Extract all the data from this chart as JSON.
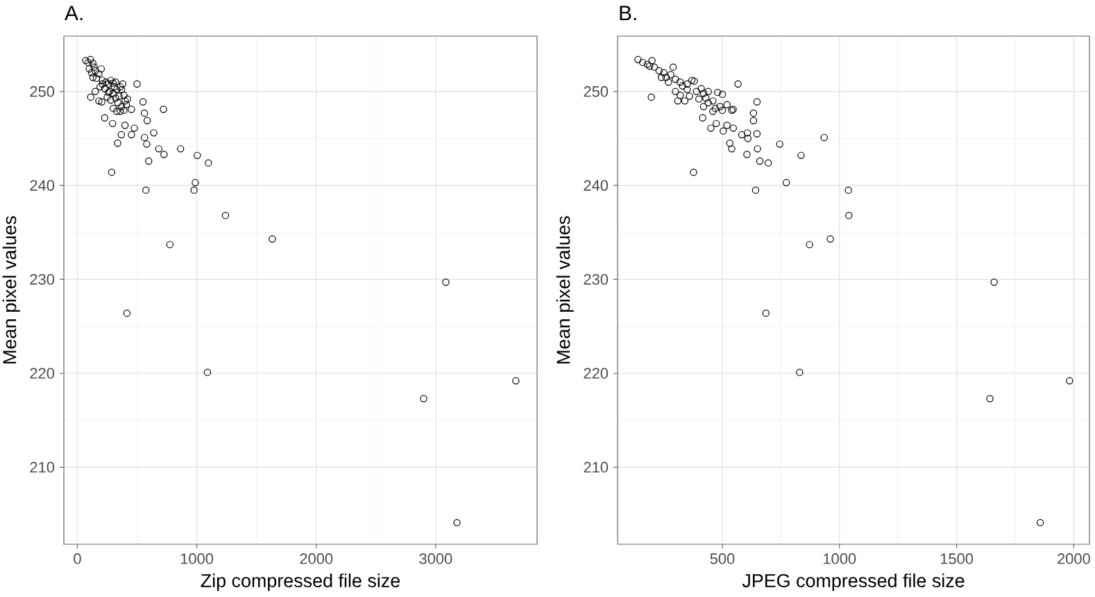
{
  "chart_data": [
    {
      "type": "scatter",
      "title": "A.",
      "xlabel": "Zip compressed file size",
      "ylabel": "Mean pixel values",
      "marker": "circle",
      "color": "#000000",
      "grid": true,
      "xlim": [
        -113,
        3849
      ],
      "ylim": [
        201.8,
        255.9
      ],
      "xticks": [
        0,
        1000,
        2000,
        3000
      ],
      "yticks": [
        210,
        220,
        230,
        240,
        250
      ],
      "x": [
        500,
        550,
        562,
        585,
        721,
        640,
        562,
        581,
        682,
        725,
        864,
        1004,
        1097,
        597,
        574,
        988,
        977,
        1240,
        775,
        1632,
        287,
        415,
        1089,
        3085,
        2899,
        3671,
        3178,
        337,
        368,
        453,
        477,
        399,
        295,
        229,
        112,
        205,
        453,
        70,
        90,
        110,
        130,
        140,
        100,
        150,
        120,
        180,
        200,
        160,
        210,
        240,
        260,
        280,
        300,
        320,
        190,
        230,
        270,
        300,
        330,
        360,
        380,
        350,
        320,
        280,
        390,
        400,
        340,
        370,
        410,
        300,
        330,
        360,
        390,
        250,
        180,
        150,
        210,
        130,
        420,
        370,
        310,
        260
      ],
      "values": [
        250.8,
        248.9,
        247.7,
        246.9,
        248.1,
        245.6,
        245.1,
        244.4,
        243.9,
        243.3,
        243.9,
        243.2,
        242.4,
        242.6,
        239.5,
        240.3,
        239.5,
        236.8,
        233.7,
        234.3,
        241.4,
        226.4,
        220.1,
        229.7,
        217.3,
        219.2,
        204.1,
        244.5,
        245.4,
        245.4,
        246.1,
        246.4,
        246.6,
        247.2,
        249.4,
        248.9,
        248.1,
        253.3,
        253.1,
        253.4,
        253.0,
        252.6,
        252.4,
        252.2,
        252.0,
        251.9,
        252.4,
        251.4,
        251.2,
        251.0,
        250.8,
        251.2,
        250.9,
        251.0,
        250.5,
        250.3,
        250.0,
        249.8,
        250.2,
        250.5,
        250.8,
        249.5,
        249.3,
        249.1,
        249.6,
        249.0,
        248.8,
        248.4,
        248.6,
        248.2,
        247.9,
        247.9,
        248.0,
        249.4,
        249.0,
        250.0,
        250.8,
        251.5,
        249.2,
        250.2,
        250.5,
        249.9
      ]
    },
    {
      "type": "scatter",
      "title": "B.",
      "xlabel": "JPEG compressed file size",
      "ylabel": "Mean pixel values",
      "marker": "circle",
      "color": "#000000",
      "grid": true,
      "xlim": [
        53,
        2067
      ],
      "ylim": [
        201.8,
        255.9
      ],
      "xticks": [
        500,
        1000,
        1500,
        2000
      ],
      "yticks": [
        210,
        220,
        230,
        240,
        250
      ],
      "x": [
        567,
        648,
        633,
        633,
        546,
        648,
        607,
        609,
        650,
        605,
        745,
        935,
        836,
        660,
        696,
        773,
        642,
        1038,
        1040,
        872,
        961,
        377,
        686,
        830,
        1660,
        1642,
        1982,
        1857,
        197,
        540,
        532,
        520,
        547,
        451,
        474,
        504,
        583,
        416,
        140,
        160,
        180,
        200,
        210,
        230,
        250,
        260,
        280,
        290,
        300,
        320,
        330,
        350,
        370,
        380,
        300,
        320,
        340,
        360,
        390,
        410,
        420,
        430,
        440,
        460,
        470,
        490,
        500,
        460,
        480,
        420,
        400,
        520,
        540,
        350,
        270,
        190,
        240,
        310,
        440,
        500
      ],
      "values": [
        250.8,
        248.9,
        247.7,
        246.9,
        248.1,
        245.5,
        245.6,
        245.0,
        243.9,
        243.3,
        244.4,
        245.1,
        243.2,
        242.6,
        242.4,
        240.3,
        239.5,
        239.5,
        236.8,
        233.7,
        234.3,
        241.4,
        226.4,
        220.1,
        229.7,
        217.3,
        219.2,
        204.1,
        249.4,
        243.9,
        244.5,
        246.4,
        246.1,
        246.1,
        246.6,
        245.8,
        245.4,
        247.2,
        253.4,
        253.1,
        252.9,
        253.3,
        252.6,
        252.2,
        252.0,
        251.5,
        251.8,
        252.6,
        251.3,
        251.0,
        250.6,
        250.8,
        251.2,
        251.1,
        250.0,
        249.6,
        249.0,
        249.5,
        250.0,
        250.3,
        249.8,
        249.3,
        248.8,
        249.0,
        248.2,
        248.4,
        248.0,
        247.9,
        249.9,
        248.4,
        249.2,
        248.6,
        248.0,
        250.2,
        251.0,
        252.7,
        251.5,
        249.0,
        250.0,
        249.7
      ]
    }
  ]
}
